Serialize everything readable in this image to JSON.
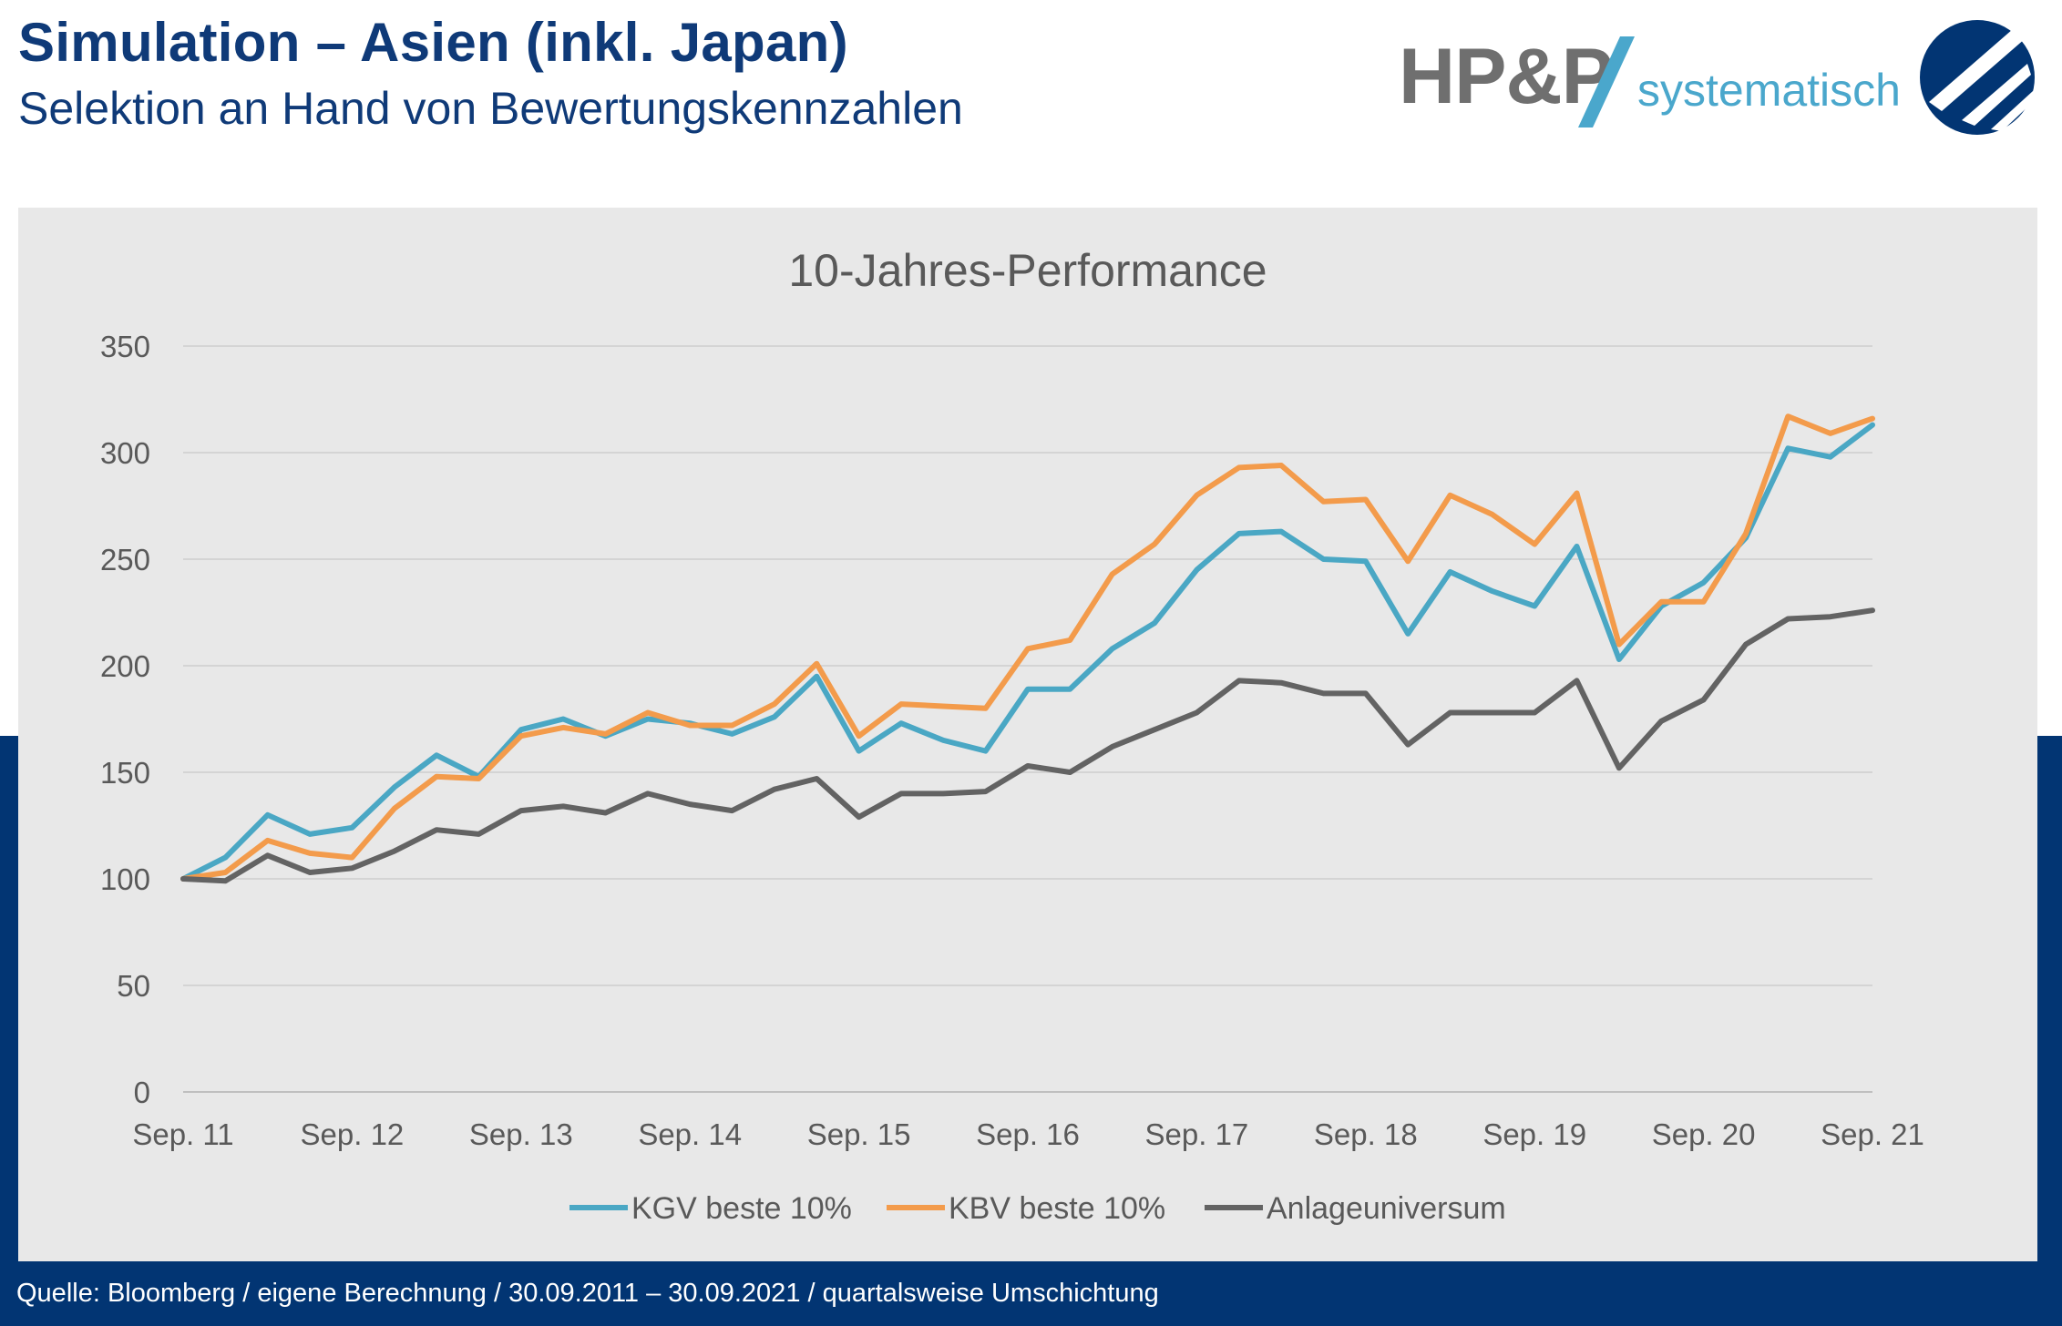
{
  "header": {
    "title": "Simulation – Asien (inkl. Japan)",
    "subtitle": "Selektion an Hand von Bewertungskennzahlen"
  },
  "logo": {
    "brand": "HP&P",
    "tagline": "systematisch",
    "brand_color": "#6f6f6f",
    "accent_color": "#4aa7cc",
    "badge_color": "#023573"
  },
  "colors": {
    "band": "#023573",
    "panel": "#e8e8e8",
    "title": "#0f3a78"
  },
  "footer": {
    "source": "Quelle: Bloomberg / eigene Berechnung / 30.09.2011 – 30.09.2021 / quartalsweise Umschichtung"
  },
  "chart_data": {
    "type": "line",
    "title": "10-Jahres-Performance",
    "xlabel": "",
    "ylabel": "",
    "ylim": [
      0,
      350
    ],
    "yticks": [
      0,
      50,
      100,
      150,
      200,
      250,
      300,
      350
    ],
    "grid": true,
    "legend_position": "bottom",
    "x_tick_labels": [
      "Sep. 11",
      "Sep. 12",
      "Sep. 13",
      "Sep. 14",
      "Sep. 15",
      "Sep. 16",
      "Sep. 17",
      "Sep. 18",
      "Sep. 19",
      "Sep. 20",
      "Sep. 21"
    ],
    "x": [
      "Sep. 11",
      "Dec. 11",
      "Mar. 12",
      "Jun. 12",
      "Sep. 12",
      "Dec. 12",
      "Mar. 13",
      "Jun. 13",
      "Sep. 13",
      "Dec. 13",
      "Mar. 14",
      "Jun. 14",
      "Sep. 14",
      "Dec. 14",
      "Mar. 15",
      "Jun. 15",
      "Sep. 15",
      "Dec. 15",
      "Mar. 16",
      "Jun. 16",
      "Sep. 16",
      "Dec. 16",
      "Mar. 17",
      "Jun. 17",
      "Sep. 17",
      "Dec. 17",
      "Mar. 18",
      "Jun. 18",
      "Sep. 18",
      "Dec. 18",
      "Mar. 19",
      "Jun. 19",
      "Sep. 19",
      "Dec. 19",
      "Mar. 20",
      "Jun. 20",
      "Sep. 20",
      "Dec. 20",
      "Mar. 21",
      "Jun. 21",
      "Sep. 21"
    ],
    "series": [
      {
        "name": "KGV beste 10%",
        "color": "#4aa7c4",
        "values": [
          100,
          110,
          130,
          121,
          124,
          143,
          158,
          148,
          170,
          175,
          167,
          175,
          173,
          168,
          176,
          195,
          160,
          173,
          165,
          160,
          189,
          189,
          208,
          220,
          245,
          262,
          263,
          250,
          249,
          215,
          244,
          235,
          228,
          256,
          203,
          228,
          239,
          260,
          302,
          298,
          313
        ]
      },
      {
        "name": "KBV beste 10%",
        "color": "#f39b4b",
        "values": [
          100,
          103,
          118,
          112,
          110,
          133,
          148,
          147,
          167,
          171,
          168,
          178,
          172,
          172,
          182,
          201,
          167,
          182,
          181,
          180,
          208,
          212,
          243,
          257,
          280,
          293,
          294,
          277,
          278,
          249,
          280,
          271,
          257,
          281,
          210,
          230,
          230,
          262,
          317,
          309,
          316
        ]
      },
      {
        "name": "Anlageuniversum",
        "color": "#636363",
        "values": [
          100,
          99,
          111,
          103,
          105,
          113,
          123,
          121,
          132,
          134,
          131,
          140,
          135,
          132,
          142,
          147,
          129,
          140,
          140,
          141,
          153,
          150,
          162,
          170,
          178,
          193,
          192,
          187,
          187,
          163,
          178,
          178,
          178,
          193,
          152,
          174,
          184,
          210,
          222,
          223,
          226
        ]
      }
    ]
  }
}
